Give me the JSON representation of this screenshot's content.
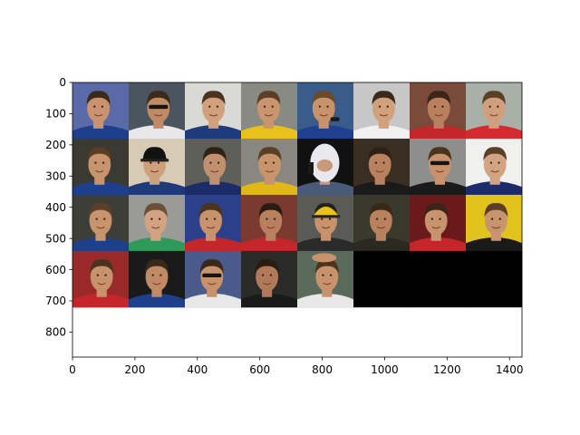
{
  "chart_data": {
    "type": "image",
    "title": "",
    "xlabel": "",
    "ylabel": "",
    "xlim": [
      0,
      1440
    ],
    "ylim": [
      880,
      0
    ],
    "xticks": [
      "0",
      "200",
      "400",
      "600",
      "800",
      "1000",
      "1200",
      "1400"
    ],
    "yticks": [
      "0",
      "100",
      "200",
      "300",
      "400",
      "500",
      "600",
      "700",
      "800"
    ],
    "grid": {
      "rows": 4,
      "cols": 8,
      "tile_size_data_units": 180
    },
    "tiles": [
      {
        "row": 0,
        "col": 0,
        "bg": "#5a6aa8",
        "skin": "#c9936f",
        "hair": "#3a2a1c",
        "shirt": "#1e3f8c",
        "accessory": "none"
      },
      {
        "row": 0,
        "col": 1,
        "bg": "#4b5560",
        "skin": "#c08a66",
        "hair": "#3b2a1a",
        "shirt": "#e8e8e8",
        "accessory": "sunglasses"
      },
      {
        "row": 0,
        "col": 2,
        "bg": "#d9d9d6",
        "skin": "#d1a07c",
        "hair": "#4a3420",
        "shirt": "#1e3a7a",
        "accessory": "none"
      },
      {
        "row": 0,
        "col": 3,
        "bg": "#8a8a84",
        "skin": "#c9956f",
        "hair": "#5a3e26",
        "shirt": "#e8c21a",
        "accessory": "none"
      },
      {
        "row": 0,
        "col": 4,
        "bg": "#3a5c8a",
        "skin": "#c8926c",
        "hair": "#6a4a2a",
        "shirt": "#1f3f8f",
        "accessory": "microphone"
      },
      {
        "row": 0,
        "col": 5,
        "bg": "#c7c7c7",
        "skin": "#d1a07c",
        "hair": "#3a2a1c",
        "shirt": "#f0f0f0",
        "accessory": "none"
      },
      {
        "row": 0,
        "col": 6,
        "bg": "#7a4a3a",
        "skin": "#b8805e",
        "hair": "#3a2618",
        "shirt": "#c4262b",
        "accessory": "none"
      },
      {
        "row": 0,
        "col": 7,
        "bg": "#a9b0a8",
        "skin": "#d0a07e",
        "hair": "#5a4028",
        "shirt": "#d42a2f",
        "accessory": "none"
      },
      {
        "row": 1,
        "col": 0,
        "bg": "#3a3a32",
        "skin": "#c8946e",
        "hair": "#5a3e24",
        "shirt": "#1e3f8c",
        "accessory": "none"
      },
      {
        "row": 1,
        "col": 1,
        "bg": "#d8cbb6",
        "skin": "#d0a07c",
        "hair": "#111111",
        "shirt": "#1e3a7a",
        "accessory": "cap-black"
      },
      {
        "row": 1,
        "col": 2,
        "bg": "#5f5f5a",
        "skin": "#c09070",
        "hair": "#2e2218",
        "shirt": "#1c2c6a",
        "accessory": "none"
      },
      {
        "row": 1,
        "col": 3,
        "bg": "#8a8680",
        "skin": "#c8946e",
        "hair": "#5a3e26",
        "shirt": "#e0b817",
        "accessory": "none"
      },
      {
        "row": 1,
        "col": 4,
        "bg": "#111111",
        "skin": "#c89a7a",
        "hair": "#e8e8ee",
        "shirt": "#4a5a7a",
        "accessory": "balaclava"
      },
      {
        "row": 1,
        "col": 5,
        "bg": "#3a2e22",
        "skin": "#b8825e",
        "hair": "#2e2016",
        "shirt": "#1a1a1a",
        "accessory": "none"
      },
      {
        "row": 1,
        "col": 6,
        "bg": "#8e8e8c",
        "skin": "#c8926c",
        "hair": "#4a3420",
        "shirt": "#1a1a1a",
        "accessory": "sunglasses"
      },
      {
        "row": 1,
        "col": 7,
        "bg": "#f0f0ee",
        "skin": "#d3a482",
        "hair": "#5a4028",
        "shirt": "#1c2c6a",
        "accessory": "none"
      },
      {
        "row": 2,
        "col": 0,
        "bg": "#3e3e38",
        "skin": "#c8946e",
        "hair": "#5a4028",
        "shirt": "#1e3f8c",
        "accessory": "none"
      },
      {
        "row": 2,
        "col": 1,
        "bg": "#9a9a96",
        "skin": "#d2a282",
        "hair": "#6a5038",
        "shirt": "#2e9a5a",
        "accessory": "none"
      },
      {
        "row": 2,
        "col": 2,
        "bg": "#2c3f8a",
        "skin": "#c8926c",
        "hair": "#4a3420",
        "shirt": "#c4262b",
        "accessory": "none"
      },
      {
        "row": 2,
        "col": 3,
        "bg": "#7a3a30",
        "skin": "#b8805e",
        "hair": "#2a1c12",
        "shirt": "#c4262b",
        "accessory": "none"
      },
      {
        "row": 2,
        "col": 4,
        "bg": "#5a5a56",
        "skin": "#c8926c",
        "hair": "#222222",
        "shirt": "#2a2a2a",
        "accessory": "cap-yellow"
      },
      {
        "row": 2,
        "col": 5,
        "bg": "#3a3a2c",
        "skin": "#b8825e",
        "hair": "#3a2818",
        "shirt": "#2a2a22",
        "accessory": "none"
      },
      {
        "row": 2,
        "col": 6,
        "bg": "#6a1a1a",
        "skin": "#c8946e",
        "hair": "#3a2618",
        "shirt": "#c4262b",
        "accessory": "none"
      },
      {
        "row": 2,
        "col": 7,
        "bg": "#e2c21c",
        "skin": "#c8946e",
        "hair": "#5a3e26",
        "shirt": "#1a1a1a",
        "accessory": "none"
      },
      {
        "row": 3,
        "col": 0,
        "bg": "#9a2a2a",
        "skin": "#c8926c",
        "hair": "#4a3420",
        "shirt": "#c4262b",
        "accessory": "none"
      },
      {
        "row": 3,
        "col": 1,
        "bg": "#1a1a1a",
        "skin": "#c08a66",
        "hair": "#3a2818",
        "shirt": "#1e3f8c",
        "accessory": "none"
      },
      {
        "row": 3,
        "col": 2,
        "bg": "#4a5a8a",
        "skin": "#c8926c",
        "hair": "#3a2818",
        "shirt": "#e8e8e8",
        "accessory": "sunglasses"
      },
      {
        "row": 3,
        "col": 3,
        "bg": "#2a2a28",
        "skin": "#b07a58",
        "hair": "#2a1c12",
        "shirt": "#1a1a1a",
        "accessory": "none"
      },
      {
        "row": 3,
        "col": 4,
        "bg": "#5a6a5a",
        "skin": "#c8926c",
        "hair": "#4a3420",
        "shirt": "#e8e8e8",
        "accessory": "hand"
      },
      {
        "row": 3,
        "col": 5,
        "bg": "#000000",
        "skin": "",
        "hair": "",
        "shirt": "",
        "accessory": "empty"
      },
      {
        "row": 3,
        "col": 6,
        "bg": "#000000",
        "skin": "",
        "hair": "",
        "shirt": "",
        "accessory": "empty"
      },
      {
        "row": 3,
        "col": 7,
        "bg": "#000000",
        "skin": "",
        "hair": "",
        "shirt": "",
        "accessory": "empty"
      }
    ]
  }
}
